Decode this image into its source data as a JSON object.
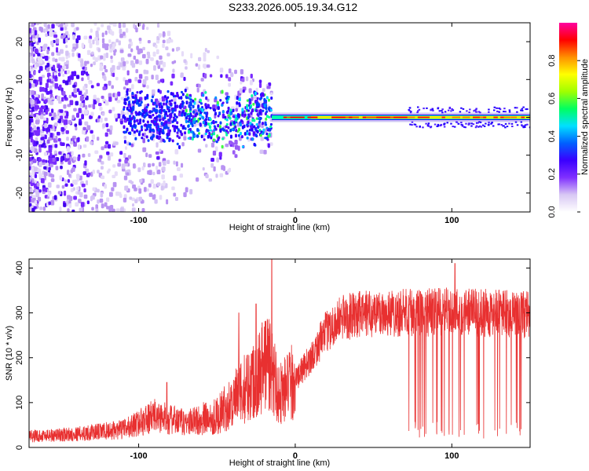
{
  "title": "S233.2026.005.19.34.G12",
  "colors": {
    "snr_line": "#e83030",
    "background": "#ffffff",
    "axis": "#000000"
  },
  "chart_data": [
    {
      "type": "heatmap",
      "name": "spectrogram",
      "xlabel": "Height of straight line (km)",
      "ylabel": "Frequency (Hz)",
      "xlim": [
        -170,
        150
      ],
      "ylim": [
        -25,
        25
      ],
      "xticks": [
        -100,
        0,
        100
      ],
      "yticks": [
        -20,
        -10,
        0,
        10,
        20
      ],
      "colorbar": {
        "label": "Normalized spectral amplitude",
        "range": [
          0,
          1
        ],
        "ticks": [
          "0.0",
          "0.2",
          "0.4",
          "0.6",
          "0.8"
        ],
        "colormap": [
          "#ffffff",
          "#d8c8f4",
          "#8030ff",
          "#3a00ff",
          "#0060ff",
          "#00e0ff",
          "#00ff60",
          "#a0ff00",
          "#ffff00",
          "#ff9000",
          "#ff0000",
          "#ff00a0"
        ]
      },
      "features": {
        "carrier_frequency_hz": 0,
        "scatter_region_km": [
          -170,
          -15
        ],
        "locked_region_km": [
          -15,
          150
        ],
        "high_amplitude_region_km": [
          10,
          150
        ]
      }
    },
    {
      "type": "line",
      "name": "snr",
      "xlabel": "Height of straight line (km)",
      "ylabel": "SNR (10 * v/v)",
      "xlim": [
        -170,
        150
      ],
      "ylim": [
        0,
        420
      ],
      "xticks": [
        -100,
        0,
        100
      ],
      "yticks": [
        0,
        100,
        200,
        300,
        400
      ],
      "profile": [
        [
          -170,
          25
        ],
        [
          -140,
          30
        ],
        [
          -110,
          40
        ],
        [
          -90,
          70
        ],
        [
          -70,
          55
        ],
        [
          -50,
          70
        ],
        [
          -35,
          120
        ],
        [
          -25,
          160
        ],
        [
          -18,
          200
        ],
        [
          -10,
          120
        ],
        [
          0,
          150
        ],
        [
          10,
          200
        ],
        [
          20,
          260
        ],
        [
          30,
          290
        ],
        [
          50,
          300
        ],
        [
          80,
          300
        ],
        [
          100,
          305
        ],
        [
          120,
          300
        ],
        [
          150,
          295
        ]
      ],
      "peaks": [
        [
          -82,
          145
        ],
        [
          -36,
          300
        ],
        [
          -25,
          320
        ],
        [
          -15,
          420
        ],
        [
          102,
          410
        ]
      ]
    }
  ]
}
